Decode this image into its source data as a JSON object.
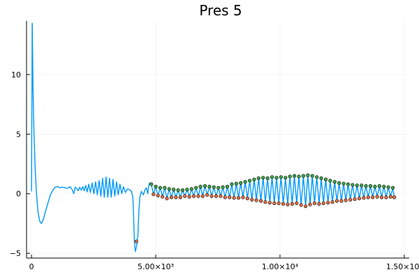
{
  "chart_data": {
    "type": "line",
    "title": "Pres 5",
    "xlabel": "",
    "ylabel": "",
    "xlim": [
      -200,
      15200
    ],
    "ylim": [
      -5.4,
      14.5
    ],
    "grid": true,
    "legend": "none",
    "x_ticks": [
      {
        "value": 0,
        "label": "0"
      },
      {
        "value": 5000,
        "label": "5.00×10³"
      },
      {
        "value": 10000,
        "label": "1.00×10⁴"
      },
      {
        "value": 15000,
        "label": "1.50×10⁴"
      }
    ],
    "y_ticks": [
      {
        "value": -5,
        "label": "−5"
      },
      {
        "value": 0,
        "label": "0"
      },
      {
        "value": 5,
        "label": "5"
      },
      {
        "value": 10,
        "label": "10"
      }
    ],
    "colors": {
      "line": "#009AFA",
      "maxima": "#3DA44D",
      "minima": "#E26F46",
      "grid": "#EEEEEE",
      "axis": "#000000"
    },
    "series": [
      {
        "kind": "line",
        "points": [
          [
            0,
            0.2
          ],
          [
            30,
            14.3
          ],
          [
            60,
            9.0
          ],
          [
            100,
            5.0
          ],
          [
            150,
            2.0
          ],
          [
            200,
            0.0
          ],
          [
            260,
            -1.5
          ],
          [
            330,
            -2.3
          ],
          [
            400,
            -2.5
          ],
          [
            470,
            -2.2
          ],
          [
            560,
            -1.5
          ],
          [
            660,
            -0.8
          ],
          [
            760,
            -0.1
          ],
          [
            860,
            0.3
          ],
          [
            950,
            0.55
          ],
          [
            1050,
            0.6
          ],
          [
            1150,
            0.5
          ],
          [
            1250,
            0.55
          ],
          [
            1350,
            0.5
          ],
          [
            1450,
            0.45
          ],
          [
            1550,
            0.6
          ],
          [
            1650,
            0.3
          ],
          [
            1700,
            0.0
          ],
          [
            1760,
            0.55
          ],
          [
            1830,
            0.4
          ],
          [
            1880,
            0.25
          ],
          [
            1940,
            0.55
          ],
          [
            2000,
            0.3
          ],
          [
            2060,
            0.6
          ],
          [
            2120,
            0.25
          ],
          [
            2180,
            0.7
          ],
          [
            2240,
            0.15
          ],
          [
            2300,
            0.8
          ],
          [
            2370,
            0.1
          ],
          [
            2440,
            0.9
          ],
          [
            2510,
            0.0
          ],
          [
            2580,
            1.0
          ],
          [
            2650,
            -0.1
          ],
          [
            2720,
            1.1
          ],
          [
            2790,
            -0.2
          ],
          [
            2860,
            1.3
          ],
          [
            2930,
            -0.3
          ],
          [
            3000,
            1.4
          ],
          [
            3070,
            -0.3
          ],
          [
            3140,
            1.3
          ],
          [
            3210,
            -0.3
          ],
          [
            3280,
            1.2
          ],
          [
            3350,
            -0.2
          ],
          [
            3420,
            1.0
          ],
          [
            3490,
            -0.1
          ],
          [
            3560,
            0.8
          ],
          [
            3630,
            0.0
          ],
          [
            3700,
            0.6
          ],
          [
            3780,
            0.1
          ],
          [
            3860,
            0.4
          ],
          [
            3940,
            0.35
          ],
          [
            4020,
            0.2
          ],
          [
            4080,
            -0.3
          ],
          [
            4110,
            -2.0
          ],
          [
            4140,
            -4.0
          ],
          [
            4180,
            -4.85
          ],
          [
            4230,
            -4.4
          ],
          [
            4280,
            -3.5
          ],
          [
            4320,
            -1.5
          ],
          [
            4360,
            -0.3
          ],
          [
            4420,
            0.2
          ],
          [
            4500,
            -0.1
          ],
          [
            4560,
            0.3
          ],
          [
            4620,
            0.5
          ],
          [
            4680,
            0.0
          ],
          [
            4720,
            0.75
          ],
          [
            4760,
            0.9
          ],
          [
            4800,
            0.75
          ]
        ]
      },
      {
        "kind": "oscillation",
        "x_start": 4820,
        "x_end": 14600,
        "cycles": 58,
        "maxima": [
          [
            4820,
            0.8
          ],
          [
            5000,
            0.6
          ],
          [
            5180,
            0.5
          ],
          [
            5360,
            0.5
          ],
          [
            5540,
            0.4
          ],
          [
            5720,
            0.35
          ],
          [
            5900,
            0.3
          ],
          [
            6080,
            0.3
          ],
          [
            6260,
            0.35
          ],
          [
            6440,
            0.4
          ],
          [
            6620,
            0.5
          ],
          [
            6800,
            0.6
          ],
          [
            6980,
            0.65
          ],
          [
            7160,
            0.6
          ],
          [
            7340,
            0.55
          ],
          [
            7520,
            0.5
          ],
          [
            7700,
            0.55
          ],
          [
            7880,
            0.6
          ],
          [
            8060,
            0.8
          ],
          [
            8240,
            0.85
          ],
          [
            8420,
            0.9
          ],
          [
            8600,
            1.0
          ],
          [
            8780,
            1.1
          ],
          [
            8960,
            1.2
          ],
          [
            9140,
            1.3
          ],
          [
            9320,
            1.35
          ],
          [
            9500,
            1.3
          ],
          [
            9680,
            1.4
          ],
          [
            9860,
            1.35
          ],
          [
            10040,
            1.4
          ],
          [
            10220,
            1.35
          ],
          [
            10400,
            1.45
          ],
          [
            10580,
            1.5
          ],
          [
            10760,
            1.45
          ],
          [
            10940,
            1.5
          ],
          [
            11120,
            1.55
          ],
          [
            11300,
            1.5
          ],
          [
            11480,
            1.4
          ],
          [
            11660,
            1.3
          ],
          [
            11840,
            1.2
          ],
          [
            12020,
            1.1
          ],
          [
            12200,
            1.0
          ],
          [
            12380,
            0.9
          ],
          [
            12560,
            0.85
          ],
          [
            12740,
            0.8
          ],
          [
            12920,
            0.75
          ],
          [
            13100,
            0.7
          ],
          [
            13280,
            0.7
          ],
          [
            13460,
            0.65
          ],
          [
            13640,
            0.65
          ],
          [
            13820,
            0.6
          ],
          [
            14000,
            0.65
          ],
          [
            14180,
            0.6
          ],
          [
            14360,
            0.55
          ],
          [
            14540,
            0.5
          ]
        ],
        "minima": [
          [
            4220,
            -4.0
          ],
          [
            4910,
            -0.05
          ],
          [
            5090,
            -0.15
          ],
          [
            5270,
            -0.25
          ],
          [
            5450,
            -0.4
          ],
          [
            5630,
            -0.3
          ],
          [
            5810,
            -0.3
          ],
          [
            5990,
            -0.3
          ],
          [
            6170,
            -0.2
          ],
          [
            6350,
            -0.25
          ],
          [
            6530,
            -0.2
          ],
          [
            6710,
            -0.2
          ],
          [
            6890,
            -0.2
          ],
          [
            7070,
            -0.1
          ],
          [
            7250,
            -0.2
          ],
          [
            7430,
            -0.2
          ],
          [
            7610,
            -0.2
          ],
          [
            7790,
            -0.3
          ],
          [
            7970,
            -0.3
          ],
          [
            8150,
            -0.35
          ],
          [
            8330,
            -0.35
          ],
          [
            8510,
            -0.3
          ],
          [
            8690,
            -0.4
          ],
          [
            8870,
            -0.5
          ],
          [
            9050,
            -0.55
          ],
          [
            9230,
            -0.6
          ],
          [
            9410,
            -0.7
          ],
          [
            9590,
            -0.75
          ],
          [
            9770,
            -0.8
          ],
          [
            9950,
            -0.8
          ],
          [
            10130,
            -0.85
          ],
          [
            10310,
            -0.9
          ],
          [
            10490,
            -0.85
          ],
          [
            10670,
            -0.8
          ],
          [
            10850,
            -0.95
          ],
          [
            11030,
            -1.05
          ],
          [
            11210,
            -0.9
          ],
          [
            11390,
            -0.8
          ],
          [
            11570,
            -0.85
          ],
          [
            11750,
            -0.8
          ],
          [
            11930,
            -0.75
          ],
          [
            12110,
            -0.7
          ],
          [
            12290,
            -0.6
          ],
          [
            12470,
            -0.6
          ],
          [
            12650,
            -0.55
          ],
          [
            12830,
            -0.5
          ],
          [
            13010,
            -0.45
          ],
          [
            13190,
            -0.4
          ],
          [
            13370,
            -0.35
          ],
          [
            13550,
            -0.3
          ],
          [
            13730,
            -0.3
          ],
          [
            13910,
            -0.25
          ],
          [
            14090,
            -0.3
          ],
          [
            14270,
            -0.3
          ],
          [
            14450,
            -0.25
          ],
          [
            14600,
            -0.3
          ]
        ]
      }
    ]
  }
}
